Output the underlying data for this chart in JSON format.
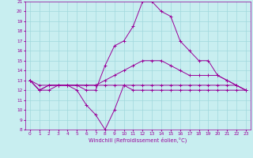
{
  "xlabel": "Windchill (Refroidissement éolien,°C)",
  "xlim": [
    -0.5,
    23.5
  ],
  "ylim": [
    8,
    21
  ],
  "xticks": [
    0,
    1,
    2,
    3,
    4,
    5,
    6,
    7,
    8,
    9,
    10,
    11,
    12,
    13,
    14,
    15,
    16,
    17,
    18,
    19,
    20,
    21,
    22,
    23
  ],
  "yticks": [
    8,
    9,
    10,
    11,
    12,
    13,
    14,
    15,
    16,
    17,
    18,
    19,
    20,
    21
  ],
  "background_color": "#c8eef0",
  "grid_color": "#a0d8dc",
  "line_color": "#990099",
  "lines": [
    {
      "x": [
        0,
        1,
        2,
        3,
        4,
        5,
        6,
        7,
        8,
        9,
        10,
        11,
        12,
        13,
        14,
        15,
        16,
        17,
        18,
        19,
        20,
        21,
        22,
        23
      ],
      "y": [
        13,
        12,
        12,
        12.5,
        12.5,
        12,
        10.5,
        9.5,
        8,
        10,
        12.5,
        12,
        12,
        12,
        12,
        12,
        12,
        12,
        12,
        12,
        12,
        12,
        12,
        12
      ]
    },
    {
      "x": [
        0,
        1,
        2,
        3,
        4,
        5,
        6,
        7,
        8,
        9,
        10,
        11,
        12,
        13,
        14,
        15,
        16,
        17,
        18,
        19,
        20,
        21,
        22,
        23
      ],
      "y": [
        13,
        12,
        12.5,
        12.5,
        12.5,
        12.5,
        12,
        12,
        14.5,
        16.5,
        17,
        18.5,
        21,
        21,
        20,
        19.5,
        17,
        16,
        15,
        15,
        13.5,
        13,
        12.5,
        12
      ]
    },
    {
      "x": [
        0,
        1,
        2,
        3,
        4,
        5,
        6,
        7,
        8,
        9,
        10,
        11,
        12,
        13,
        14,
        15,
        16,
        17,
        18,
        19,
        20,
        21,
        22,
        23
      ],
      "y": [
        13,
        12,
        12.5,
        12.5,
        12.5,
        12.5,
        12.5,
        12.5,
        13,
        13.5,
        14,
        14.5,
        15,
        15,
        15,
        14.5,
        14,
        13.5,
        13.5,
        13.5,
        13.5,
        13,
        12.5,
        12
      ]
    },
    {
      "x": [
        0,
        1,
        2,
        3,
        4,
        5,
        6,
        7,
        8,
        9,
        10,
        11,
        12,
        13,
        14,
        15,
        16,
        17,
        18,
        19,
        20,
        21,
        22,
        23
      ],
      "y": [
        13,
        12.5,
        12.5,
        12.5,
        12.5,
        12.5,
        12.5,
        12.5,
        12.5,
        12.5,
        12.5,
        12.5,
        12.5,
        12.5,
        12.5,
        12.5,
        12.5,
        12.5,
        12.5,
        12.5,
        12.5,
        12.5,
        12.5,
        12
      ]
    }
  ]
}
